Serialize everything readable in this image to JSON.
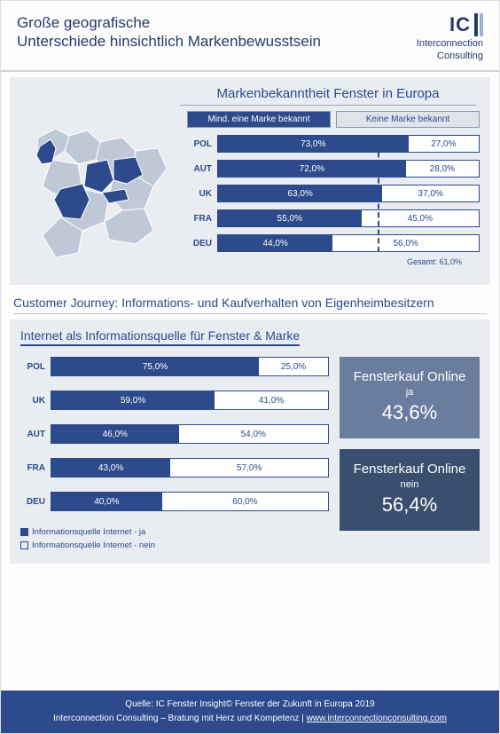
{
  "header": {
    "title_line1": "Große geografische",
    "title_line2": "Unterschiede hinsichtlich Markenbewusstsein",
    "logo_text": "IC",
    "logo_sub1": "Interconnection",
    "logo_sub2": "Consulting"
  },
  "colors": {
    "brand_blue": "#2c4a8c",
    "panel_bg": "#e9edf2",
    "box_light": "#6a7d9e",
    "box_dark": "#3a4e70",
    "grey": "#bfc8d6"
  },
  "panel1": {
    "title": "Markenbekanntheit Fenster in Europa",
    "legend_known": "Mind. eine Marke bekannt",
    "legend_unknown": "Keine Marke bekannt",
    "overall_label": "Gesamt: 61,0%",
    "overall_pct": 61.0,
    "rows": [
      {
        "country": "POL",
        "known": 73.0,
        "unknown": 27.0,
        "known_label": "73,0%",
        "unknown_label": "27,0%"
      },
      {
        "country": "AUT",
        "known": 72.0,
        "unknown": 28.0,
        "known_label": "72,0%",
        "unknown_label": "28,0%"
      },
      {
        "country": "UK",
        "known": 63.0,
        "unknown": 37.0,
        "known_label": "63,0%",
        "unknown_label": "37,0%"
      },
      {
        "country": "FRA",
        "known": 55.0,
        "unknown": 45.0,
        "known_label": "55,0%",
        "unknown_label": "45,0%"
      },
      {
        "country": "DEU",
        "known": 44.0,
        "unknown": 56.0,
        "known_label": "44,0%",
        "unknown_label": "56,0%"
      }
    ]
  },
  "section2_title": "Customer Journey: Informations- und Kaufverhalten von Eigenheimbesitzern",
  "panel2": {
    "title": "Internet als Informationsquelle für Fenster & Marke",
    "rows": [
      {
        "country": "POL",
        "yes": 75.0,
        "no": 25.0,
        "yes_label": "75,0%",
        "no_label": "25,0%"
      },
      {
        "country": "UK",
        "yes": 59.0,
        "no": 41.0,
        "yes_label": "59,0%",
        "no_label": "41,0%"
      },
      {
        "country": "AUT",
        "yes": 46.0,
        "no": 54.0,
        "yes_label": "46,0%",
        "no_label": "54,0%"
      },
      {
        "country": "FRA",
        "yes": 43.0,
        "no": 57.0,
        "yes_label": "43,0%",
        "no_label": "57,0%"
      },
      {
        "country": "DEU",
        "yes": 40.0,
        "no": 60.0,
        "yes_label": "40,0%",
        "no_label": "60,0%"
      }
    ],
    "legend_yes": "Informationsquelle Internet - ja",
    "legend_no": "Informationsquelle Internet - nein",
    "box_yes": {
      "title": "Fensterkauf Online",
      "sub": "ja",
      "value": "43,6%"
    },
    "box_no": {
      "title": "Fensterkauf Online",
      "sub": "nein",
      "value": "56,4%"
    }
  },
  "footer": {
    "line1": "Quelle: IC Fenster Insight© Fenster der Zukunft in Europa 2019",
    "line2_prefix": "Interconnection Consulting – Bratung mit Herz und Kompetenz | ",
    "link": "www.interconnectionconsulting.com"
  }
}
